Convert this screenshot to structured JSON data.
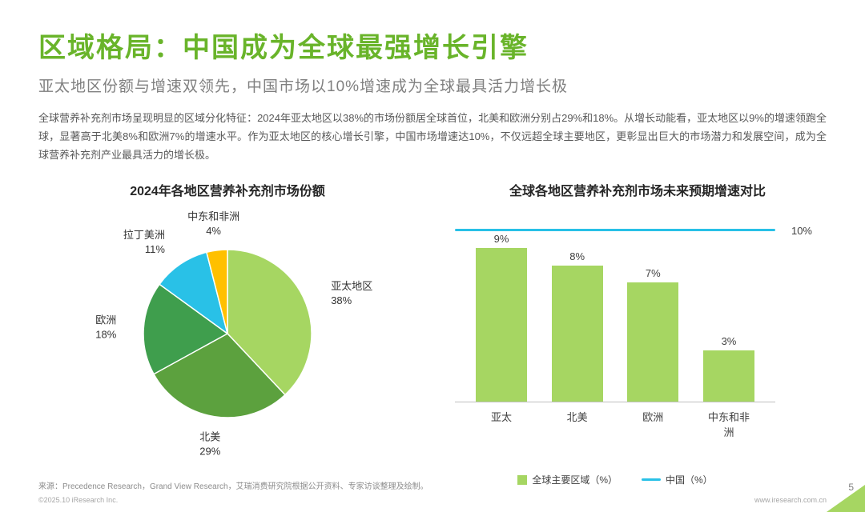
{
  "page": {
    "title": "区域格局：中国成为全球最强增长引擎",
    "subtitle": "亚太地区份额与增速双领先，中国市场以10%增速成为全球最具活力增长极",
    "body": "全球营养补充剂市场呈现明显的区域分化特征：2024年亚太地区以38%的市场份额居全球首位，北美和欧洲分别占29%和18%。从增长动能看，亚太地区以9%的增速领跑全球，显著高于北美8%和欧洲7%的增速水平。作为亚太地区的核心增长引擎，中国市场增速达10%，不仅远超全球主要地区，更彰显出巨大的市场潜力和发展空间，成为全球营养补充剂产业最具活力的增长极。",
    "source": "来源：Precedence Research，Grand View Research，艾瑞消费研究院根据公开资料、专家访谈整理及绘制。",
    "copyright": "©2025.10 iResearch Inc.",
    "website": "www.iresearch.com.cn",
    "page_number": "5"
  },
  "colors": {
    "accent_green": "#69b42a",
    "light_green": "#a6d662",
    "cyan": "#29c1e7",
    "yellow": "#ffc000"
  },
  "chart_data": [
    {
      "type": "pie",
      "title": "2024年各地区营养补充剂市场份额",
      "labels": [
        "亚太地区",
        "北美",
        "欧洲",
        "拉丁美洲",
        "中东和非洲"
      ],
      "values": [
        38,
        29,
        18,
        11,
        4
      ],
      "value_labels": [
        "38%",
        "29%",
        "18%",
        "11%",
        "4%"
      ],
      "colors": [
        "#a6d662",
        "#5ca13e",
        "#3f9e4d",
        "#29c1e7",
        "#ffc000"
      ],
      "start_angle_deg_from_top": 0,
      "direction": "clockwise"
    },
    {
      "type": "bar",
      "title": "全球各地区营养补充剂市场未来预期增速对比",
      "categories": [
        "亚太",
        "北美",
        "欧洲",
        "中东和非洲"
      ],
      "values": [
        9,
        8,
        7,
        3
      ],
      "value_labels": [
        "9%",
        "8%",
        "7%",
        "3%"
      ],
      "bar_color": "#a6d662",
      "line_series": {
        "name": "中国（%）",
        "value": 10,
        "label": "10%",
        "color": "#29c1e7"
      },
      "legend": [
        "全球主要区域（%）",
        "中国（%）"
      ],
      "legend_position": "bottom",
      "ylim": [
        0,
        10
      ],
      "grid": false
    }
  ]
}
